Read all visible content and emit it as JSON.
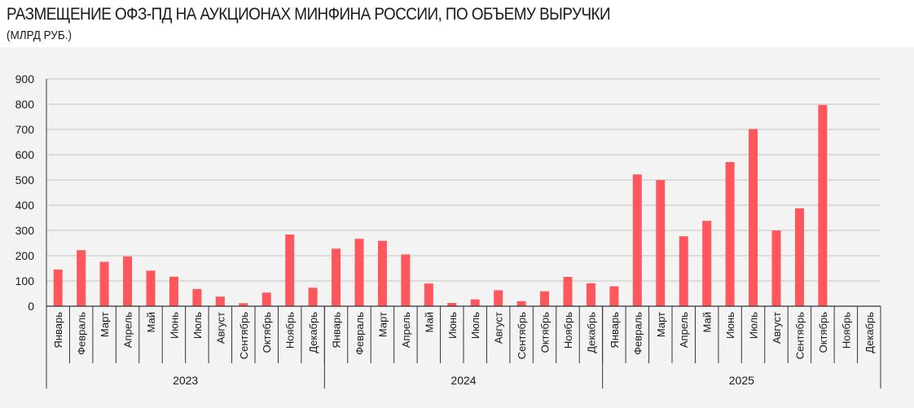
{
  "title": "РАЗМЕЩЕНИЕ ОФЗ-ПД НА АУКЦИОНАХ МИНФИНА РОССИИ, ПО ОБЪЕМУ ВЫРУЧКИ",
  "subtitle": "(МЛРД РУБ.)",
  "colors": {
    "bar": "#ff575b",
    "grid": "#c6c6c6",
    "axis": "#333333",
    "band": "#f3f3f4"
  },
  "chart_data": {
    "type": "bar",
    "title": "РАЗМЕЩЕНИЕ ОФЗ-ПД НА АУКЦИОНАХ МИНФИНА РОССИИ, ПО ОБЪЕМУ ВЫРУЧКИ",
    "subtitle": "(МЛРД РУБ.)",
    "ylim": [
      0,
      900
    ],
    "yticks": [
      0,
      100,
      200,
      300,
      400,
      500,
      600,
      700,
      800,
      900
    ],
    "grid": true,
    "groups": [
      {
        "label": "2023",
        "categories": [
          "Январь",
          "Февраль",
          "Март",
          "Апрель",
          "Май",
          "Июнь",
          "Июль",
          "Август",
          "Сентябрь",
          "Октябрь",
          "Ноябрь",
          "Декабрь"
        ],
        "values": [
          145,
          222,
          176,
          197,
          141,
          117,
          68,
          38,
          12,
          54,
          284,
          73
        ]
      },
      {
        "label": "2024",
        "categories": [
          "Январь",
          "Февраль",
          "Март",
          "Апрель",
          "Май",
          "Июнь",
          "Июль",
          "Август",
          "Сентябрь",
          "Октябрь",
          "Ноябрь",
          "Декабрь"
        ],
        "values": [
          228,
          267,
          259,
          205,
          90,
          13,
          27,
          63,
          20,
          59,
          116,
          91
        ]
      },
      {
        "label": "2025",
        "categories": [
          "Январь",
          "Февраль",
          "Март",
          "Апрель",
          "Май",
          "Июнь",
          "Июль",
          "Август",
          "Сентябрь",
          "Октябрь",
          "Ноябрь",
          "Декабрь"
        ],
        "values": [
          79,
          522,
          500,
          277,
          338,
          571,
          702,
          300,
          388,
          797,
          null,
          null
        ]
      }
    ]
  }
}
